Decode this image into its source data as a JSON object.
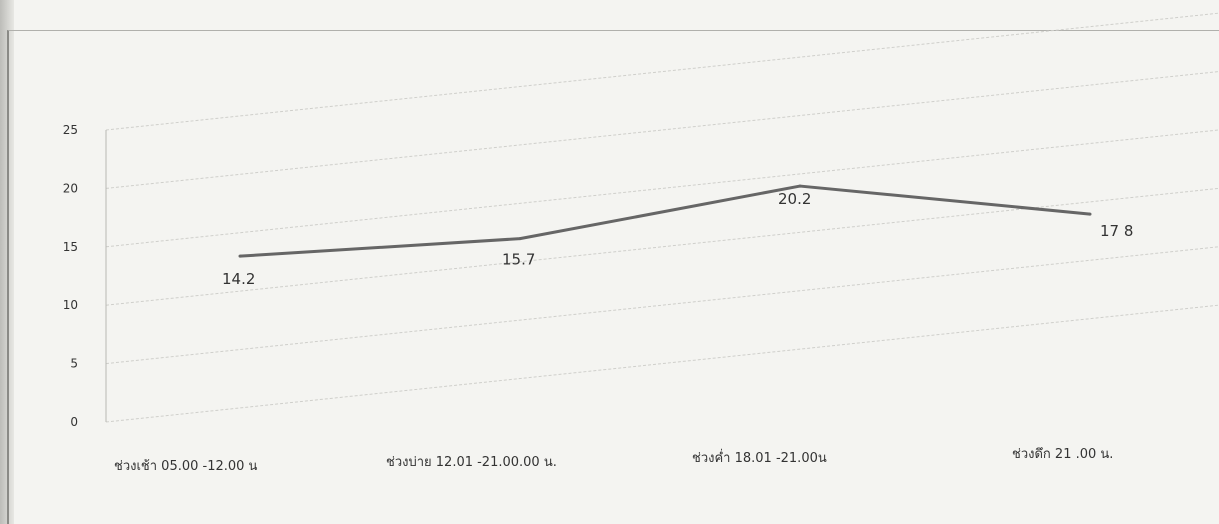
{
  "chart_data": {
    "type": "line",
    "title": "",
    "xlabel": "",
    "ylabel": "",
    "categories": [
      "ช่วงเช้า 05.00 -12.00 น",
      "ช่วงบ่าย 12.01 -21.00.00 น.",
      "ช่วงค่ำ 18.01 -21.00น",
      "ช่วงดึก 21 .00 น."
    ],
    "series": [
      {
        "values": [
          14.2,
          15.7,
          20.2,
          17.8
        ],
        "data_labels": [
          "14.2",
          "15.7",
          "20.2",
          "17 8"
        ]
      }
    ],
    "ylim": [
      0,
      25
    ],
    "yticks": [
      0,
      5,
      10,
      15,
      20,
      25
    ],
    "grid": true,
    "legend": "none",
    "line_color": "#666666"
  }
}
